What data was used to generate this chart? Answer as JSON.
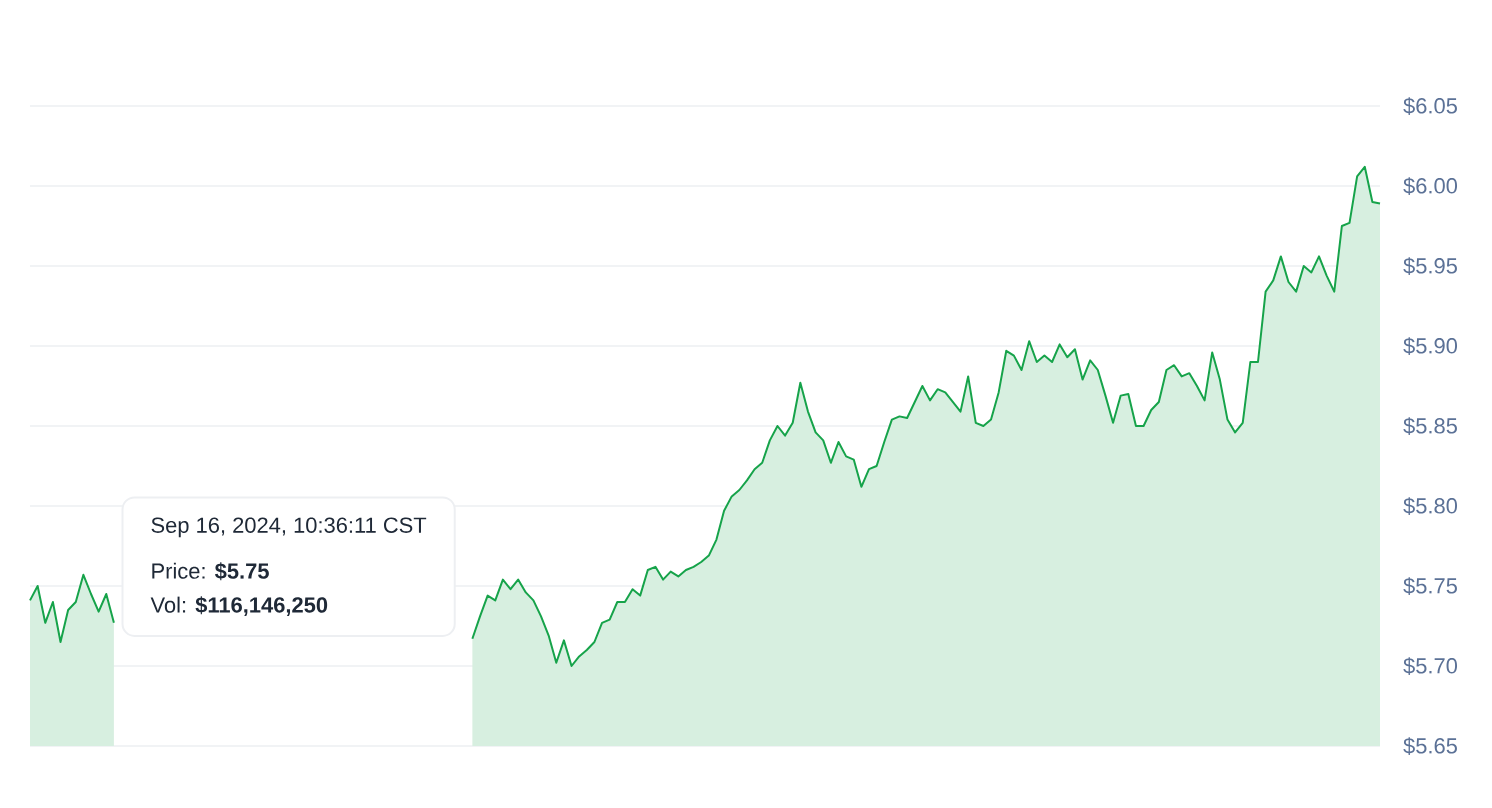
{
  "chart_data": {
    "type": "area",
    "color": "#16a34a",
    "categories": [
      null,
      null,
      null,
      null,
      null,
      null,
      null,
      null,
      null,
      null,
      null,
      null,
      null,
      null,
      null,
      null,
      null,
      null,
      null,
      null,
      null,
      null,
      null,
      null,
      null,
      null,
      null,
      null,
      null,
      null,
      null,
      null,
      null,
      null,
      null,
      null,
      null,
      null,
      null,
      null,
      null,
      null,
      null,
      null,
      null,
      null,
      null,
      null,
      null,
      null,
      null,
      null,
      null,
      null,
      null,
      null,
      null,
      null,
      null,
      null,
      null,
      null,
      null,
      null,
      null,
      null,
      null,
      null,
      null,
      null,
      null,
      null,
      null,
      null,
      null,
      null,
      null,
      null,
      null,
      null,
      null,
      null,
      null,
      null,
      null,
      null,
      null,
      null,
      null,
      null,
      null,
      null,
      null,
      null,
      null,
      null,
      null,
      null,
      null,
      null,
      null,
      null,
      null,
      null,
      null,
      null,
      null,
      null,
      null,
      null,
      null,
      null,
      null,
      null,
      null,
      null,
      null,
      null,
      null,
      null,
      null,
      null,
      null,
      null,
      null,
      null,
      null,
      null,
      null,
      null,
      null,
      null,
      null,
      null,
      null,
      null,
      null,
      null,
      null,
      null,
      null,
      null,
      null,
      null,
      null,
      null,
      null,
      null,
      null,
      null,
      null,
      null,
      null,
      null,
      null,
      null,
      null,
      null,
      null,
      null,
      null,
      null,
      null,
      null,
      null,
      null,
      null,
      null,
      null,
      null,
      null,
      null,
      null,
      null,
      null,
      null,
      null,
      null
    ],
    "values": [
      5.741,
      5.75,
      5.727,
      5.74,
      5.715,
      5.735,
      5.74,
      5.757,
      5.745,
      5.734,
      5.745,
      5.727,
      null,
      null,
      null,
      null,
      null,
      null,
      null,
      null,
      null,
      null,
      null,
      null,
      null,
      null,
      null,
      null,
      null,
      null,
      null,
      null,
      null,
      null,
      null,
      null,
      null,
      null,
      null,
      null,
      null,
      null,
      null,
      null,
      null,
      null,
      null,
      null,
      null,
      null,
      null,
      null,
      null,
      null,
      null,
      null,
      null,
      null,
      5.717,
      5.731,
      5.744,
      5.741,
      5.754,
      5.748,
      5.754,
      5.746,
      5.741,
      5.731,
      5.719,
      5.702,
      5.716,
      5.7,
      5.706,
      5.71,
      5.715,
      5.727,
      5.729,
      5.74,
      5.74,
      5.748,
      5.744,
      5.76,
      5.762,
      5.754,
      5.759,
      5.756,
      5.76,
      5.762,
      5.765,
      5.769,
      5.779,
      5.797,
      5.806,
      5.81,
      5.816,
      5.823,
      5.827,
      5.841,
      5.85,
      5.844,
      5.852,
      5.877,
      5.859,
      5.846,
      5.841,
      5.827,
      5.84,
      5.831,
      5.829,
      5.812,
      5.823,
      5.825,
      5.84,
      5.854,
      5.856,
      5.855,
      5.865,
      5.875,
      5.866,
      5.873,
      5.871,
      5.865,
      5.859,
      5.881,
      5.852,
      5.85,
      5.854,
      5.871,
      5.897,
      5.894,
      5.885,
      5.903,
      5.89,
      5.894,
      5.89,
      5.901,
      5.893,
      5.898,
      5.879,
      5.891,
      5.885,
      5.869,
      5.852,
      5.869,
      5.87,
      5.85,
      5.85,
      5.86,
      5.865,
      5.885,
      5.888,
      5.881,
      5.883,
      5.875,
      5.866,
      5.896,
      5.879,
      5.854,
      5.846,
      5.852,
      5.89,
      5.89,
      5.934,
      5.941,
      5.956,
      5.94,
      5.934,
      5.95,
      5.946,
      5.956,
      5.944,
      5.934,
      5.975,
      5.977,
      6.006,
      6.012,
      5.99,
      5.989
    ],
    "ylim": [
      5.65,
      6.05
    ],
    "yticks": [
      {
        "value": 5.65,
        "label": "$5.65"
      },
      {
        "value": 5.7,
        "label": "$5.70"
      },
      {
        "value": 5.75,
        "label": "$5.75"
      },
      {
        "value": 5.8,
        "label": "$5.80"
      },
      {
        "value": 5.85,
        "label": "$5.85"
      },
      {
        "value": 5.9,
        "label": "$5.90"
      },
      {
        "value": 5.95,
        "label": "$5.95"
      },
      {
        "value": 6.0,
        "label": "$6.00"
      },
      {
        "value": 6.05,
        "label": "$6.05"
      }
    ],
    "grid": "y",
    "tick_labels": "y",
    "annotations": [
      "Sep 16, 2024, 10:36:11 CST",
      "Price: **$5.75**",
      "Vol: **$116,146,250**"
    ]
  }
}
